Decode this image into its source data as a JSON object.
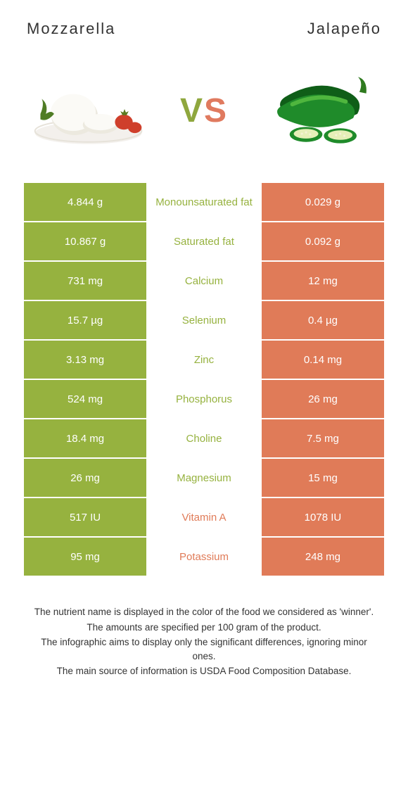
{
  "header": {
    "left_title": "Mozzarella",
    "right_title": "Jalapeño"
  },
  "vs": {
    "v": "V",
    "s": "S"
  },
  "colors": {
    "left": "#96b23f",
    "right": "#e07b58",
    "mid_text_left": "#96b23f",
    "mid_text_right": "#e07b58"
  },
  "svg": {
    "mozzarella": {
      "plate": "#f3f0ec",
      "plate_rim": "#e6e2d9",
      "ball": "#fbfaf6",
      "ball_shadow": "#ece9df",
      "tomato": "#cf3f2b",
      "tomato_stem": "#5c7a23",
      "basil": "#4f7c25"
    },
    "jalapeno": {
      "body": "#1f8b2a",
      "body_dark": "#0f5e18",
      "body_light": "#4fb63e",
      "stem": "#2f7a1f",
      "slice_inner": "#e6efb8",
      "seed": "#f5f1d6"
    }
  },
  "rows": [
    {
      "left": "4.844 g",
      "label": "Monounsaturated fat",
      "right": "0.029 g",
      "winner": "left"
    },
    {
      "left": "10.867 g",
      "label": "Saturated fat",
      "right": "0.092 g",
      "winner": "left"
    },
    {
      "left": "731 mg",
      "label": "Calcium",
      "right": "12 mg",
      "winner": "left"
    },
    {
      "left": "15.7 µg",
      "label": "Selenium",
      "right": "0.4 µg",
      "winner": "left"
    },
    {
      "left": "3.13 mg",
      "label": "Zinc",
      "right": "0.14 mg",
      "winner": "left"
    },
    {
      "left": "524 mg",
      "label": "Phosphorus",
      "right": "26 mg",
      "winner": "left"
    },
    {
      "left": "18.4 mg",
      "label": "Choline",
      "right": "7.5 mg",
      "winner": "left"
    },
    {
      "left": "26 mg",
      "label": "Magnesium",
      "right": "15 mg",
      "winner": "left"
    },
    {
      "left": "517 IU",
      "label": "Vitamin A",
      "right": "1078 IU",
      "winner": "right"
    },
    {
      "left": "95 mg",
      "label": "Potassium",
      "right": "248 mg",
      "winner": "right"
    }
  ],
  "footer": {
    "line1": "The nutrient name is displayed in the color of the food we considered as 'winner'.",
    "line2": "The amounts are specified per 100 gram of the product.",
    "line3": "The infographic aims to display only the significant differences, ignoring minor ones.",
    "line4": "The main source of information is USDA Food Composition Database."
  }
}
